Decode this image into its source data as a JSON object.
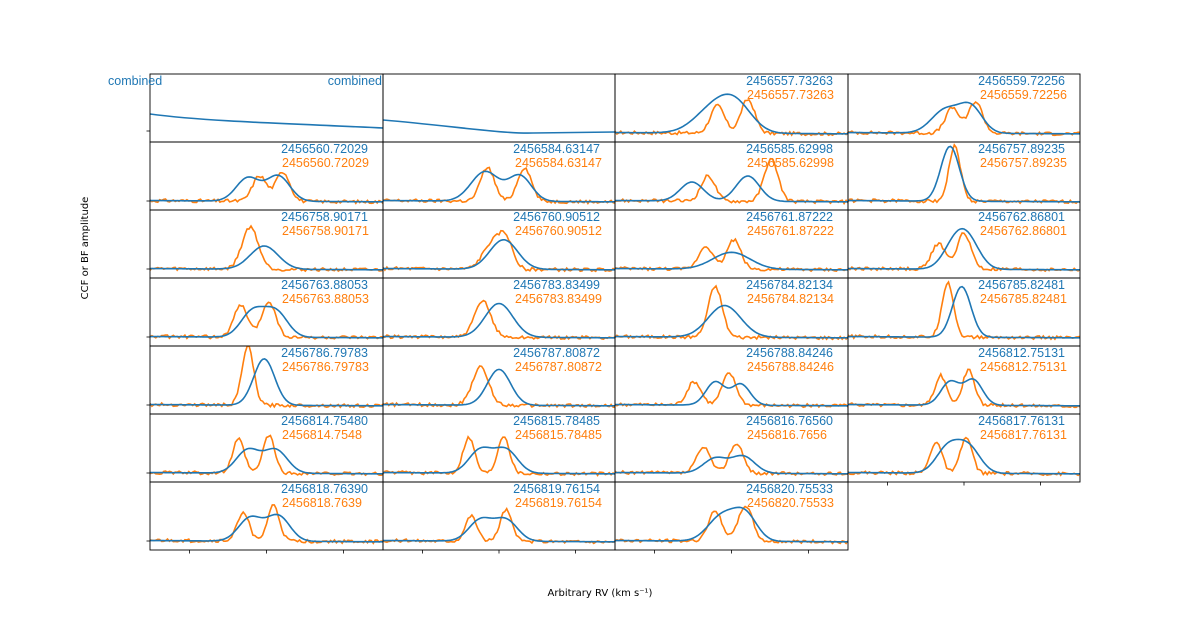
{
  "figure": {
    "xlabel": "Arbitrary RV (km s⁻¹)",
    "ylabel": "CCF or BF amplitude",
    "colors": {
      "ccf": "#1f77b4",
      "bf": "#ff7f0e",
      "frame": "#000000"
    }
  },
  "chart_data": {
    "type": "line",
    "grid": false,
    "legend": "none",
    "panels": [
      {
        "kind": "combined",
        "label_left": "combined"
      },
      {
        "kind": "combined",
        "label_right": "combined"
      },
      {
        "label_blue": "2456557.73263",
        "label_orange": "2456557.73263"
      },
      {
        "label_blue": "2456559.72256",
        "label_orange": "2456559.72256"
      },
      {
        "label_blue": "2456560.72029",
        "label_orange": "2456560.72029"
      },
      {
        "label_blue": "2456584.63147",
        "label_orange": "2456584.63147"
      },
      {
        "label_blue": "2456585.62998",
        "label_orange": "2456585.62998"
      },
      {
        "label_blue": "2456757.89235",
        "label_orange": "2456757.89235"
      },
      {
        "label_blue": "2456758.90171",
        "label_orange": "2456758.90171"
      },
      {
        "label_blue": "2456760.90512",
        "label_orange": "2456760.90512"
      },
      {
        "label_blue": "2456761.87222",
        "label_orange": "2456761.87222"
      },
      {
        "label_blue": "2456762.86801",
        "label_orange": "2456762.86801"
      },
      {
        "label_blue": "2456763.88053",
        "label_orange": "2456763.88053"
      },
      {
        "label_blue": "2456783.83499",
        "label_orange": "2456783.83499"
      },
      {
        "label_blue": "2456784.82134",
        "label_orange": "2456784.82134"
      },
      {
        "label_blue": "2456785.82481",
        "label_orange": "2456785.82481"
      },
      {
        "label_blue": "2456786.79783",
        "label_orange": "2456786.79783"
      },
      {
        "label_blue": "2456787.80872",
        "label_orange": "2456787.80872"
      },
      {
        "label_blue": "2456788.84246",
        "label_orange": "2456788.84246"
      },
      {
        "label_blue": "2456812.75131",
        "label_orange": "2456812.75131"
      },
      {
        "label_blue": "2456814.75480",
        "label_orange": "2456814.7548"
      },
      {
        "label_blue": "2456815.78485",
        "label_orange": "2456815.78485"
      },
      {
        "label_blue": "2456816.76560",
        "label_orange": "2456816.7656"
      },
      {
        "label_blue": "2456817.76131",
        "label_orange": "2456817.76131"
      },
      {
        "label_blue": "2456818.76390",
        "label_orange": "2456818.7639"
      },
      {
        "label_blue": "2456819.76154",
        "label_orange": "2456819.76154"
      },
      {
        "label_blue": "2456820.75533",
        "label_orange": "2456820.75533"
      }
    ]
  }
}
